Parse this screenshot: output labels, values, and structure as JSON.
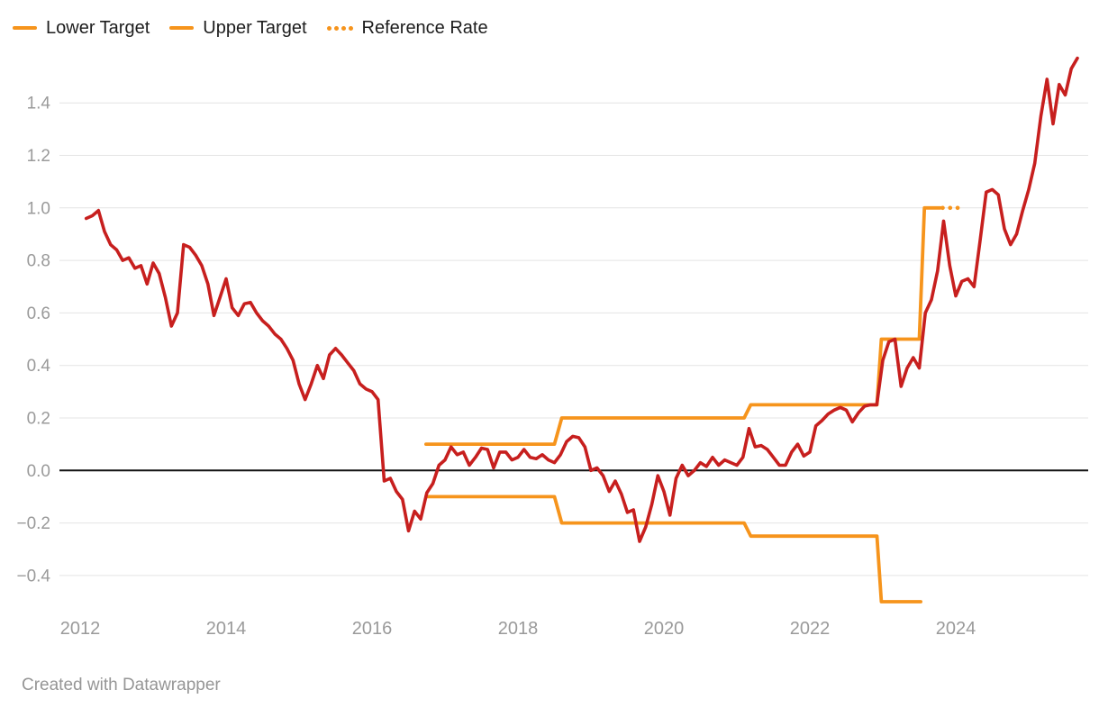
{
  "legend": {
    "items": [
      {
        "label": "Lower Target",
        "swatch": "solid-dash",
        "color": "#F6941C"
      },
      {
        "label": "Upper Target",
        "swatch": "solid-dash",
        "color": "#F6941C"
      },
      {
        "label": "Reference Rate",
        "swatch": "dotted",
        "color": "#F6941C"
      }
    ]
  },
  "footer": {
    "credit": "Created with Datawrapper"
  },
  "colors": {
    "rate_line": "#C71F1E",
    "target_line": "#F6941C",
    "grid": "#E4E4E4",
    "zero_line": "#111111",
    "axis_text": "#9A9A9A",
    "legend_text": "#1D1D1D",
    "footer_text": "#969696",
    "background": "#FFFFFF"
  },
  "chart_data": {
    "type": "line",
    "title": "",
    "legend_position": "top-left",
    "x_axis": {
      "ticks": [
        {
          "v": 2012,
          "label": "2012"
        },
        {
          "v": 2014,
          "label": "2014"
        },
        {
          "v": 2016,
          "label": "2016"
        },
        {
          "v": 2018,
          "label": "2018"
        },
        {
          "v": 2020,
          "label": "2020"
        },
        {
          "v": 2022,
          "label": "2022"
        },
        {
          "v": 2024,
          "label": "2024"
        }
      ],
      "range_years": [
        2011.7,
        2025.8
      ]
    },
    "y_axis": {
      "ticks": [
        {
          "v": 1.4,
          "label": "1.4"
        },
        {
          "v": 1.2,
          "label": "1.2"
        },
        {
          "v": 1.0,
          "label": "1.0"
        },
        {
          "v": 0.8,
          "label": "0.8"
        },
        {
          "v": 0.6,
          "label": "0.6"
        },
        {
          "v": 0.4,
          "label": "0.4"
        },
        {
          "v": 0.2,
          "label": "0.2"
        },
        {
          "v": 0.0,
          "label": "0.0"
        },
        {
          "v": -0.2,
          "label": "−0.2"
        },
        {
          "v": -0.4,
          "label": "−0.4"
        }
      ],
      "range": [
        -0.52,
        1.6
      ],
      "grid": true,
      "zero_baseline": true
    },
    "series": [
      {
        "name": "rate",
        "in_legend": false,
        "style": "solid",
        "color_key": "rate_line",
        "x_start_year": 2012,
        "x_step_months": 1,
        "point_convention": "month-end",
        "values": [
          0.96,
          0.97,
          0.99,
          0.91,
          0.86,
          0.84,
          0.8,
          0.81,
          0.77,
          0.78,
          0.71,
          0.79,
          0.75,
          0.66,
          0.55,
          0.6,
          0.86,
          0.85,
          0.82,
          0.78,
          0.71,
          0.59,
          0.66,
          0.73,
          0.62,
          0.59,
          0.635,
          0.64,
          0.6,
          0.57,
          0.55,
          0.52,
          0.5,
          0.465,
          0.42,
          0.33,
          0.27,
          0.33,
          0.4,
          0.35,
          0.44,
          0.465,
          0.44,
          0.41,
          0.38,
          0.33,
          0.31,
          0.3,
          0.27,
          -0.04,
          -0.03,
          -0.08,
          -0.11,
          -0.23,
          -0.155,
          -0.185,
          -0.085,
          -0.05,
          0.02,
          0.04,
          0.09,
          0.06,
          0.07,
          0.02,
          0.05,
          0.085,
          0.08,
          0.01,
          0.07,
          0.07,
          0.04,
          0.05,
          0.08,
          0.05,
          0.045,
          0.06,
          0.04,
          0.03,
          0.06,
          0.11,
          0.13,
          0.125,
          0.09,
          0.0,
          0.01,
          -0.02,
          -0.08,
          -0.04,
          -0.09,
          -0.16,
          -0.15,
          -0.27,
          -0.215,
          -0.13,
          -0.02,
          -0.08,
          -0.17,
          -0.03,
          0.02,
          -0.02,
          0.0,
          0.03,
          0.015,
          0.05,
          0.02,
          0.04,
          0.03,
          0.02,
          0.05,
          0.16,
          0.09,
          0.095,
          0.08,
          0.05,
          0.02,
          0.02,
          0.07,
          0.1,
          0.055,
          0.07,
          0.17,
          0.19,
          0.215,
          0.23,
          0.24,
          0.23,
          0.185,
          0.22,
          0.245,
          0.25,
          0.25,
          0.42,
          0.49,
          0.5,
          0.32,
          0.39,
          0.43,
          0.39,
          0.6,
          0.65,
          0.76,
          0.95,
          0.78,
          0.665,
          0.72,
          0.73,
          0.7,
          0.875,
          1.06,
          1.07,
          1.05,
          0.92,
          0.86,
          0.9,
          0.99,
          1.07,
          1.17,
          1.35,
          1.49,
          1.32,
          1.47,
          1.43,
          1.53,
          1.57
        ]
      },
      {
        "name": "Upper Target",
        "in_legend": true,
        "style": "solid",
        "color_key": "target_line",
        "points": [
          [
            2016.74,
            0.1
          ],
          [
            2018.5,
            0.1
          ],
          [
            2018.6,
            0.2
          ],
          [
            2021.1,
            0.2
          ],
          [
            2021.19,
            0.25
          ],
          [
            2022.92,
            0.25
          ],
          [
            2022.98,
            0.5
          ],
          [
            2023.5,
            0.5
          ],
          [
            2023.57,
            1.0
          ],
          [
            2023.79,
            1.0
          ]
        ]
      },
      {
        "name": "Lower Target",
        "in_legend": true,
        "style": "solid",
        "color_key": "target_line",
        "points": [
          [
            2016.74,
            -0.1
          ],
          [
            2018.5,
            -0.1
          ],
          [
            2018.6,
            -0.2
          ],
          [
            2021.1,
            -0.2
          ],
          [
            2021.19,
            -0.25
          ],
          [
            2022.92,
            -0.25
          ],
          [
            2022.98,
            -0.5
          ],
          [
            2023.52,
            -0.5
          ]
        ]
      },
      {
        "name": "Reference Rate",
        "in_legend": true,
        "style": "dotted",
        "color_key": "target_line",
        "points": [
          [
            2023.82,
            1.0
          ],
          [
            2024.12,
            1.0
          ]
        ]
      }
    ]
  }
}
